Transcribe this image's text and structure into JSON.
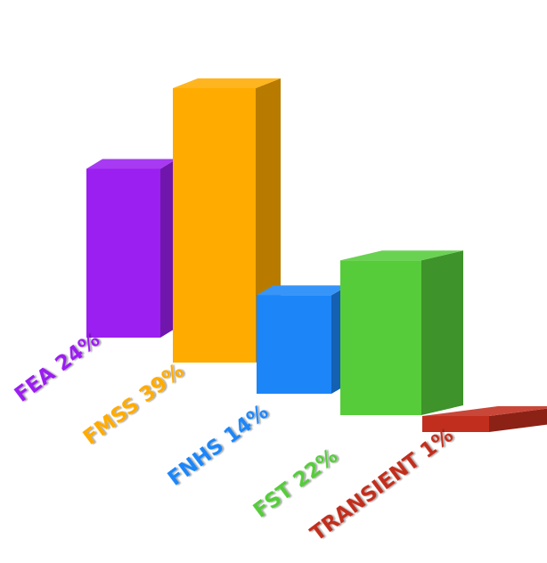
{
  "chart_data": {
    "type": "bar",
    "style": "3d",
    "title": "",
    "xlabel": "",
    "ylabel": "",
    "grid": false,
    "legend": "none",
    "unit": "%",
    "categories": [
      "FEA",
      "FMSS",
      "FNHS",
      "FST",
      "TRANSIENT"
    ],
    "values": [
      24,
      39,
      14,
      22,
      1
    ],
    "labels": [
      "FEA 24%",
      "FMSS 39%",
      "FNHS 14%",
      "FST 22%",
      "TRANSIENT 1%"
    ],
    "colors": [
      "#9b1ff0",
      "#ffab00",
      "#1c86f8",
      "#56cc3a",
      "#c22e1e"
    ]
  }
}
